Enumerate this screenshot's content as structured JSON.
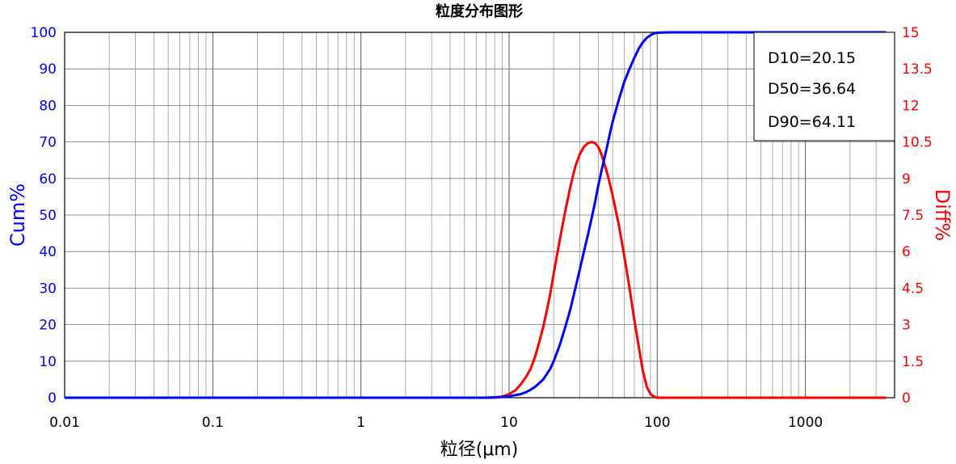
{
  "chart_data": {
    "type": "line",
    "title": "粒度分布图形",
    "xlabel": "粒径(μm)",
    "ylabel_left": "Cum%",
    "ylabel_right": "Diff%",
    "x_scale": "log",
    "xlim": [
      0.01,
      4000
    ],
    "ylim_left": [
      0,
      100
    ],
    "ylim_right": [
      0,
      15
    ],
    "x_ticks": [
      "0.01",
      "0.1",
      "1",
      "10",
      "100",
      "1000"
    ],
    "y_left_ticks": [
      "0",
      "10",
      "20",
      "30",
      "40",
      "50",
      "60",
      "70",
      "80",
      "90",
      "100"
    ],
    "y_right_ticks": [
      "0",
      "1.5",
      "3",
      "4.5",
      "6",
      "7.5",
      "9",
      "10.5",
      "12",
      "13.5",
      "15"
    ],
    "grid": true,
    "colors": {
      "cum": "#0000ff",
      "diff": "#ff0000",
      "left_axis": "#0000ff",
      "right_axis": "#ff0000"
    },
    "series": [
      {
        "axis": "left",
        "x": [
          0.01,
          1,
          5,
          7,
          8,
          9,
          10,
          11,
          12,
          13,
          14,
          15,
          16,
          17,
          18,
          19,
          20,
          22,
          24,
          26,
          28,
          30,
          32,
          34,
          36,
          38,
          40,
          42,
          44,
          46,
          48,
          50,
          55,
          60,
          65,
          70,
          75,
          80,
          85,
          90,
          95,
          100,
          120,
          200,
          1000,
          3500
        ],
        "y": [
          0,
          0,
          0,
          0,
          0.1,
          0.2,
          0.4,
          0.7,
          1.0,
          1.5,
          2.2,
          3.0,
          4.0,
          5.0,
          6.5,
          8.0,
          10.0,
          14.5,
          19.5,
          24.5,
          30.0,
          35.0,
          40.0,
          44.5,
          49.0,
          53.5,
          58.0,
          62.0,
          65.5,
          69.0,
          72.5,
          75.5,
          81.5,
          86.5,
          90.0,
          93.0,
          95.5,
          97.3,
          98.5,
          99.2,
          99.7,
          99.9,
          100,
          100,
          100,
          100
        ]
      },
      {
        "axis": "right",
        "x": [
          0.01,
          1,
          5,
          8,
          9,
          10,
          11,
          12,
          13,
          14,
          15,
          16,
          17,
          18,
          19,
          20,
          22,
          24,
          26,
          28,
          30,
          32,
          34,
          36,
          38,
          40,
          42,
          44,
          46,
          48,
          50,
          55,
          60,
          65,
          70,
          75,
          80,
          85,
          90,
          95,
          100,
          110,
          120,
          200,
          1000,
          3500
        ],
        "y": [
          0,
          0,
          0,
          0,
          0.05,
          0.15,
          0.3,
          0.55,
          0.85,
          1.2,
          1.7,
          2.3,
          2.9,
          3.6,
          4.3,
          5.1,
          6.5,
          7.7,
          8.7,
          9.5,
          10.0,
          10.3,
          10.45,
          10.5,
          10.45,
          10.3,
          10.0,
          9.6,
          9.2,
          8.75,
          8.3,
          7.1,
          5.8,
          4.5,
          3.2,
          2.1,
          1.1,
          0.45,
          0.15,
          0.05,
          0,
          0,
          0,
          0,
          0,
          0
        ]
      }
    ],
    "annotations": [
      "D10=20.15",
      "D50=36.64",
      "D90=64.11"
    ]
  }
}
